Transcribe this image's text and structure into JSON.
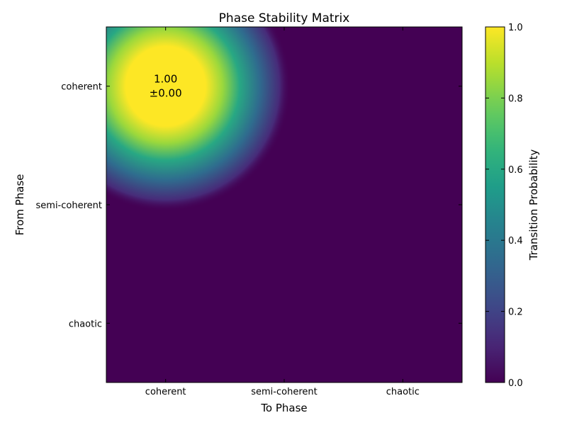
{
  "chart_data": {
    "type": "heatmap",
    "title": "Phase Stability Matrix",
    "xlabel": "To Phase",
    "ylabel": "From Phase",
    "x_categories": [
      "coherent",
      "semi-coherent",
      "chaotic"
    ],
    "y_categories": [
      "coherent",
      "semi-coherent",
      "chaotic"
    ],
    "values": [
      [
        1.0,
        0.0,
        0.0
      ],
      [
        0.0,
        0.0,
        0.0
      ],
      [
        0.0,
        0.0,
        0.0
      ]
    ],
    "annotations": [
      {
        "row": 0,
        "col": 0,
        "value": "1.00",
        "error": "±0.00"
      }
    ],
    "colormap": "viridis",
    "interpolation": "smooth",
    "colorbar": {
      "label": "Transition Probability",
      "range": [
        0.0,
        1.0
      ],
      "ticks": [
        "0.0",
        "0.2",
        "0.4",
        "0.6",
        "0.8",
        "1.0"
      ]
    }
  }
}
